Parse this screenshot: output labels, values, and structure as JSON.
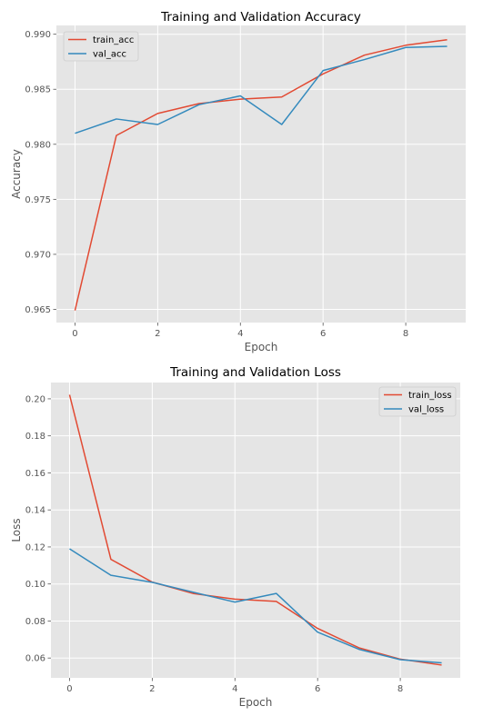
{
  "colors": {
    "train": "#e24a33",
    "val": "#348abd",
    "plot_bg": "#e5e5e5",
    "grid": "#ffffff",
    "tick_text": "#555555"
  },
  "chart_data": [
    {
      "type": "line",
      "title": "Training and Validation Accuracy",
      "xlabel": "Epoch",
      "ylabel": "Accuracy",
      "x": [
        0,
        1,
        2,
        3,
        4,
        5,
        6,
        7,
        8,
        9
      ],
      "xlim": [
        -0.45,
        9.45
      ],
      "ylim": [
        0.9638,
        0.9908
      ],
      "xticks": [
        0,
        2,
        4,
        6,
        8
      ],
      "xtick_labels": [
        "0",
        "2",
        "4",
        "6",
        "8"
      ],
      "yticks": [
        0.965,
        0.97,
        0.975,
        0.98,
        0.985,
        0.99
      ],
      "ytick_labels": [
        "0.965",
        "0.970",
        "0.975",
        "0.980",
        "0.985",
        "0.990"
      ],
      "grid": true,
      "legend_position": "top-left",
      "series": [
        {
          "name": "train_acc",
          "color_key": "train",
          "values": [
            0.9649,
            0.9808,
            0.9828,
            0.9837,
            0.9841,
            0.9843,
            0.9864,
            0.9881,
            0.989,
            0.9895
          ]
        },
        {
          "name": "val_acc",
          "color_key": "val",
          "values": [
            0.981,
            0.9823,
            0.9818,
            0.9836,
            0.9844,
            0.9818,
            0.9867,
            0.9877,
            0.9888,
            0.9889
          ]
        }
      ]
    },
    {
      "type": "line",
      "title": "Training and Validation Loss",
      "xlabel": "Epoch",
      "ylabel": "Loss",
      "x": [
        0,
        1,
        2,
        3,
        4,
        5,
        6,
        7,
        8,
        9
      ],
      "xlim": [
        -0.45,
        9.45
      ],
      "ylim": [
        0.0493,
        0.2088
      ],
      "xticks": [
        0,
        2,
        4,
        6,
        8
      ],
      "xtick_labels": [
        "0",
        "2",
        "4",
        "6",
        "8"
      ],
      "yticks": [
        0.06,
        0.08,
        0.1,
        0.12,
        0.14,
        0.16,
        0.18,
        0.2
      ],
      "ytick_labels": [
        "0.06",
        "0.08",
        "0.10",
        "0.12",
        "0.14",
        "0.16",
        "0.18",
        "0.20"
      ],
      "grid": true,
      "legend_position": "top-right",
      "series": [
        {
          "name": "train_loss",
          "color_key": "train",
          "values": [
            0.2022,
            0.1133,
            0.101,
            0.0948,
            0.0918,
            0.0906,
            0.076,
            0.0655,
            0.0594,
            0.0562
          ]
        },
        {
          "name": "val_loss",
          "color_key": "val",
          "values": [
            0.119,
            0.1047,
            0.1009,
            0.0955,
            0.0902,
            0.0949,
            0.074,
            0.0647,
            0.0591,
            0.0574
          ]
        }
      ]
    }
  ]
}
